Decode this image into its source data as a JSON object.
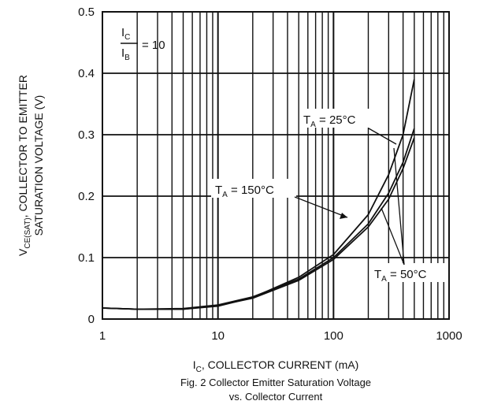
{
  "chart_data": {
    "type": "line",
    "title": "",
    "xscale": "log",
    "xlim": [
      1,
      1000
    ],
    "ylim": [
      0,
      0.5
    ],
    "grid": true,
    "x_ticks": [
      "1",
      "10",
      "100",
      "1000"
    ],
    "y_ticks": [
      "0",
      "0.1",
      "0.2",
      "0.3",
      "0.4",
      "0.5"
    ],
    "xlabel": {
      "main": "I",
      "sub": "C",
      "rest": ", COLLECTOR CURRENT (mA)"
    },
    "ylabel": {
      "line1_main": "V",
      "line1_sub": "CE(SAT)",
      "line1_rest": ", COLLECTOR TO EMITTER",
      "line2": "SATURATION VOLTAGE (V)"
    },
    "condition": {
      "num_main": "I",
      "num_sub": "C",
      "den_main": "I",
      "den_sub": "B",
      "value": "= 10"
    },
    "series": [
      {
        "name": "T_A = 25°C",
        "label": {
          "main": "T",
          "sub": "A",
          "rest": " = 25°C"
        },
        "x": [
          1,
          2,
          5,
          10,
          20,
          50,
          100,
          200,
          300,
          400,
          500
        ],
        "y": [
          0.018,
          0.016,
          0.016,
          0.021,
          0.035,
          0.068,
          0.105,
          0.17,
          0.235,
          0.3,
          0.39
        ]
      },
      {
        "name": "T_A = 150°C",
        "label": {
          "main": "T",
          "sub": "A",
          "rest": " = 150°C"
        },
        "x": [
          1,
          2,
          5,
          10,
          20,
          50,
          100,
          200,
          300,
          400,
          500
        ],
        "y": [
          0.018,
          0.016,
          0.017,
          0.023,
          0.036,
          0.065,
          0.1,
          0.155,
          0.205,
          0.255,
          0.31
        ]
      },
      {
        "name": "T_A = 50°C",
        "label": {
          "main": "T",
          "sub": "A",
          "rest": " = 50°C"
        },
        "x": [
          1,
          2,
          5,
          10,
          20,
          50,
          100,
          200,
          300,
          400,
          500
        ],
        "y": [
          0.018,
          0.016,
          0.016,
          0.022,
          0.034,
          0.063,
          0.097,
          0.15,
          0.195,
          0.245,
          0.295
        ]
      }
    ],
    "caption": [
      "Fig. 2  Collector Emitter Saturation Voltage",
      "vs. Collector Current"
    ]
  }
}
